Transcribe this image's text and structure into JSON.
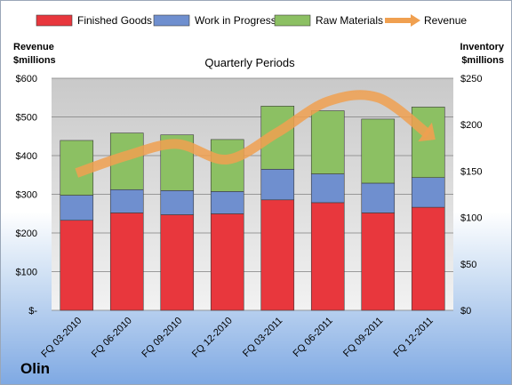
{
  "company": "Olin",
  "chart_data": {
    "type": "bar",
    "stacked": true,
    "subtitle": "Quarterly Periods",
    "categories": [
      "FQ 03-2010",
      "FQ 06-2010",
      "FQ 09-2010",
      "FQ 12-2010",
      "FQ 03-2011",
      "FQ 06-2011",
      "FQ 09-2011",
      "FQ 12-2011"
    ],
    "series": [
      {
        "name": "Finished Goods",
        "axis": "right",
        "color": "#e8373d",
        "values": [
          97,
          105,
          103,
          104,
          119,
          116,
          105,
          111
        ]
      },
      {
        "name": "Work in Progress",
        "axis": "right",
        "color": "#6f8fcf",
        "values": [
          27,
          25,
          26,
          24,
          33,
          31,
          32,
          32
        ]
      },
      {
        "name": "Raw Materials",
        "axis": "right",
        "color": "#8cc063",
        "values": [
          59,
          61,
          60,
          56,
          68,
          68,
          69,
          76
        ]
      },
      {
        "name": "Revenue",
        "type": "line",
        "axis": "left",
        "color": "#f0a050",
        "values": [
          355,
          400,
          430,
          390,
          460,
          540,
          550,
          455
        ]
      }
    ],
    "left_axis": {
      "title_line1": "Revenue",
      "title_line2": "$millions",
      "ylim": [
        0,
        600
      ],
      "ticks": [
        0,
        100,
        200,
        300,
        400,
        500,
        600
      ],
      "tick_labels": [
        "$-",
        "$100",
        "$200",
        "$300",
        "$400",
        "$500",
        "$600"
      ]
    },
    "right_axis": {
      "title_line1": "Inventory",
      "title_line2": "$millions",
      "ylim": [
        0,
        250
      ],
      "ticks": [
        0,
        50,
        100,
        150,
        200,
        250
      ],
      "tick_labels": [
        "$0",
        "$50",
        "$100",
        "$150",
        "$200",
        "$250"
      ]
    },
    "grid": true,
    "legend": "top"
  }
}
